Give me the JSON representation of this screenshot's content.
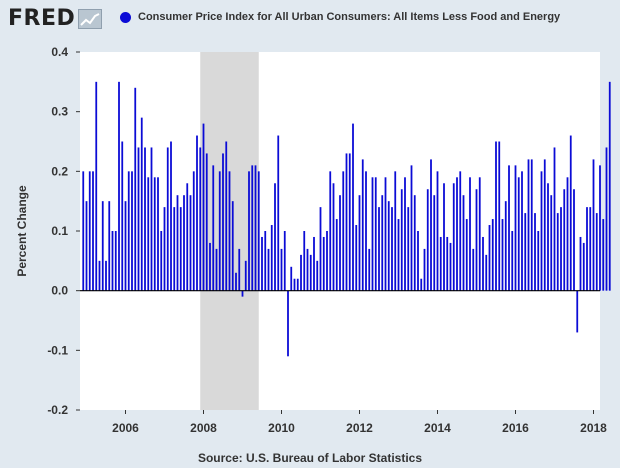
{
  "brand": {
    "logo_text": "FRED",
    "logo_icon": "fred-chart-icon"
  },
  "colors": {
    "series": "#0b0bd6",
    "recession": "#d9d9d9",
    "plot_bg": "#ffffff",
    "page_bg": "#e1e9f0",
    "axis": "#000000"
  },
  "footer": {
    "source": "Source: U.S. Bureau of Labor Statistics"
  },
  "chart_data": {
    "type": "bar",
    "title": "",
    "xlabel": "",
    "ylabel": "Percent Change",
    "ylim": [
      -0.2,
      0.4
    ],
    "yticks": [
      0.4,
      0.3,
      0.2,
      0.1,
      0.0,
      -0.1,
      -0.2
    ],
    "ytick_labels": [
      "0.4",
      "0.3",
      "0.2",
      "0.1",
      "0.0",
      "-0.1",
      "-0.2"
    ],
    "xlim": [
      "2004-11",
      "2018-03"
    ],
    "xticks": [
      "2006",
      "2008",
      "2010",
      "2012",
      "2014",
      "2016",
      "2018"
    ],
    "grid": false,
    "legend_position": "top",
    "recession_shading": [
      {
        "start": "2007-12",
        "end": "2009-06"
      }
    ],
    "series": [
      {
        "name": "Consumer Price Index for All Urban Consumers: All Items Less Food and Energy",
        "start": "2004-12",
        "frequency": "monthly",
        "values": [
          0.2,
          0.15,
          0.2,
          0.2,
          0.35,
          0.05,
          0.15,
          0.05,
          0.15,
          0.1,
          0.1,
          0.35,
          0.25,
          0.15,
          0.2,
          0.2,
          0.34,
          0.24,
          0.29,
          0.24,
          0.19,
          0.24,
          0.19,
          0.19,
          0.1,
          0.14,
          0.24,
          0.25,
          0.14,
          0.16,
          0.14,
          0.16,
          0.18,
          0.16,
          0.2,
          0.26,
          0.24,
          0.28,
          0.23,
          0.08,
          0.21,
          0.07,
          0.2,
          0.23,
          0.25,
          0.2,
          0.15,
          0.03,
          0.07,
          -0.01,
          0.05,
          0.2,
          0.21,
          0.21,
          0.2,
          0.09,
          0.1,
          0.07,
          0.11,
          0.18,
          0.26,
          0.07,
          0.1,
          -0.11,
          0.04,
          0.02,
          0.02,
          0.06,
          0.1,
          0.07,
          0.06,
          0.09,
          0.05,
          0.14,
          0.09,
          0.1,
          0.2,
          0.18,
          0.12,
          0.16,
          0.2,
          0.23,
          0.23,
          0.28,
          0.11,
          0.16,
          0.22,
          0.2,
          0.07,
          0.19,
          0.19,
          0.14,
          0.16,
          0.19,
          0.15,
          0.14,
          0.2,
          0.12,
          0.17,
          0.19,
          0.14,
          0.21,
          0.16,
          0.1,
          0.02,
          0.07,
          0.17,
          0.22,
          0.16,
          0.2,
          0.09,
          0.18,
          0.09,
          0.08,
          0.18,
          0.19,
          0.2,
          0.16,
          0.12,
          0.19,
          0.07,
          0.17,
          0.19,
          0.09,
          0.06,
          0.11,
          0.12,
          0.25,
          0.25,
          0.12,
          0.15,
          0.21,
          0.1,
          0.21,
          0.19,
          0.2,
          0.13,
          0.22,
          0.22,
          0.13,
          0.1,
          0.2,
          0.22,
          0.18,
          0.16,
          0.24,
          0.13,
          0.14,
          0.17,
          0.19,
          0.26,
          0.17,
          -0.07,
          0.09,
          0.08,
          0.14,
          0.14,
          0.22,
          0.13,
          0.21,
          0.12,
          0.24,
          0.35
        ]
      }
    ]
  }
}
